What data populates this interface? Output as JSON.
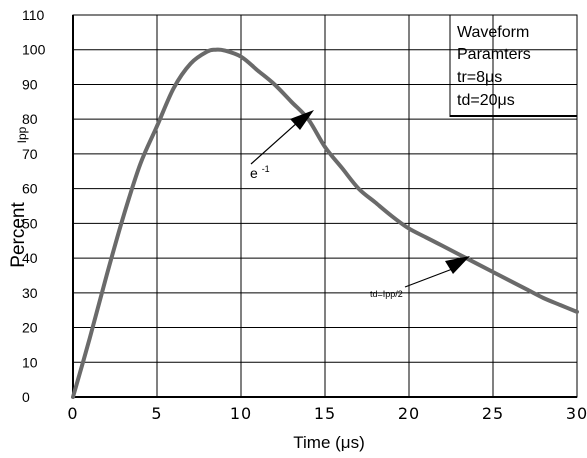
{
  "chart_data": {
    "type": "line",
    "title": "",
    "xlabel": "Time (μs)",
    "ylabel": "Percent",
    "ylabel2": "Ipp",
    "xlim": [
      0,
      30
    ],
    "ylim": [
      0,
      110
    ],
    "x_ticks": [
      "0",
      "5",
      "10",
      "15",
      "20",
      "25",
      "30"
    ],
    "y_ticks": [
      "0",
      "10",
      "20",
      "30",
      "40",
      "50",
      "60",
      "70",
      "80",
      "90",
      "100",
      "110"
    ],
    "grid": true,
    "legend": {
      "position": "top-right",
      "lines": [
        "Waveform",
        "Paramters",
        "tr=8μs",
        "td=20μs"
      ]
    },
    "annotations": [
      {
        "text": "e",
        "superscript": "-1",
        "x": 14,
        "y": 82
      },
      {
        "text": "td=Ipp/2",
        "x": 23,
        "y": 41
      }
    ],
    "series": [
      {
        "x": [
          0,
          1,
          2,
          3,
          4,
          5,
          6,
          7,
          8,
          8.5,
          9,
          10,
          11,
          12,
          13,
          14,
          15,
          16,
          17,
          18,
          19,
          20,
          21,
          22,
          23,
          24,
          25,
          26,
          27,
          28,
          29,
          30
        ],
        "values": [
          0,
          17,
          35,
          52,
          67,
          78,
          89,
          96,
          99.5,
          100,
          99.8,
          98,
          94,
          90,
          85,
          80,
          72,
          66,
          60,
          56,
          52,
          48.5,
          46,
          43.5,
          41,
          38.5,
          36,
          33.5,
          31,
          28.5,
          26.5,
          24.5
        ]
      }
    ]
  }
}
